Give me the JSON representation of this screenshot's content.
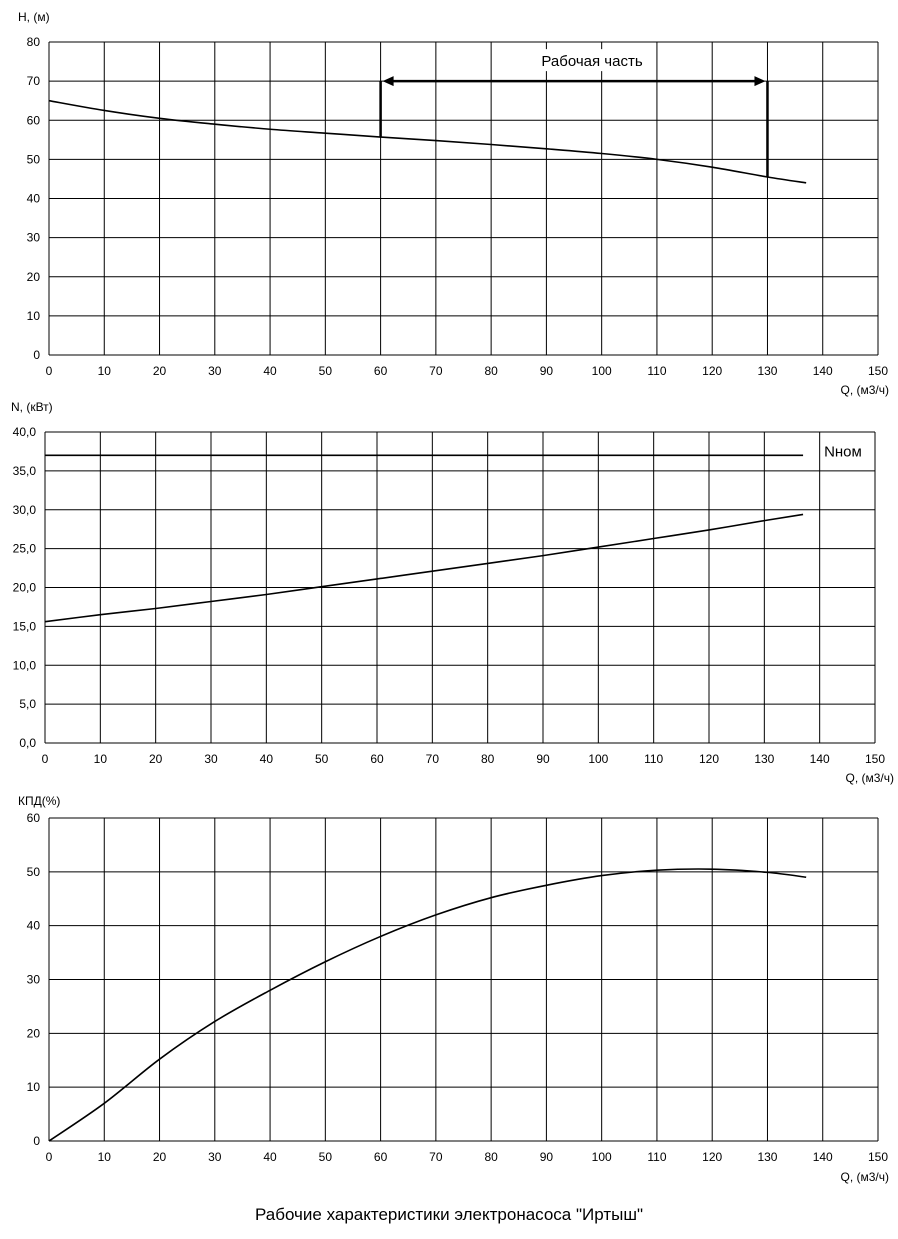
{
  "caption": "Рабочие характеристики электронасоса \"Иртыш\"",
  "chart_data": [
    {
      "type": "line",
      "ylabel": "H, (м)",
      "xlabel": "Q, (м3/ч)",
      "xlim": [
        0,
        150
      ],
      "ylim": [
        0,
        80
      ],
      "x_ticks": [
        "0",
        "10",
        "20",
        "30",
        "40",
        "50",
        "60",
        "70",
        "80",
        "90",
        "100",
        "110",
        "120",
        "130",
        "140",
        "150"
      ],
      "y_ticks": [
        "0",
        "10",
        "20",
        "30",
        "40",
        "50",
        "60",
        "70",
        "80"
      ],
      "grid": true,
      "series": [
        {
          "x": [
            0,
            10,
            20,
            30,
            40,
            50,
            60,
            70,
            80,
            90,
            100,
            110,
            120,
            130,
            137
          ],
          "y": [
            65,
            62.5,
            60.5,
            59,
            57.7,
            56.7,
            55.7,
            54.8,
            53.8,
            52.7,
            51.5,
            50,
            48,
            45.5,
            44
          ]
        }
      ],
      "annotation": {
        "text": "Рабочая часть",
        "x_start": 60,
        "x_end": 130,
        "y_level": 70
      }
    },
    {
      "type": "line",
      "ylabel": "N, (кВт)",
      "xlabel": "Q, (м3/ч)",
      "xlim": [
        0,
        150
      ],
      "ylim": [
        0,
        40
      ],
      "x_ticks": [
        "0",
        "10",
        "20",
        "30",
        "40",
        "50",
        "60",
        "70",
        "80",
        "90",
        "100",
        "110",
        "120",
        "130",
        "140",
        "150"
      ],
      "y_ticks": [
        "0,0",
        "5,0",
        "10,0",
        "15,0",
        "20,0",
        "25,0",
        "30,0",
        "35,0",
        "40,0"
      ],
      "grid": true,
      "series": [
        {
          "x": [
            0,
            10,
            20,
            30,
            40,
            50,
            60,
            70,
            80,
            90,
            100,
            110,
            120,
            130,
            137
          ],
          "y": [
            15.6,
            16.5,
            17.3,
            18.2,
            19.1,
            20.1,
            21.1,
            22.1,
            23.1,
            24.1,
            25.2,
            26.3,
            27.4,
            28.6,
            29.4
          ]
        },
        {
          "name": "Nном",
          "x": [
            0,
            137
          ],
          "y": [
            37,
            37
          ]
        }
      ]
    },
    {
      "type": "line",
      "ylabel": "КПД(%)",
      "xlabel": "Q, (м3/ч)",
      "xlim": [
        0,
        150
      ],
      "ylim": [
        0,
        60
      ],
      "x_ticks": [
        "0",
        "10",
        "20",
        "30",
        "40",
        "50",
        "60",
        "70",
        "80",
        "90",
        "100",
        "110",
        "120",
        "130",
        "140",
        "150"
      ],
      "y_ticks": [
        "0",
        "10",
        "20",
        "30",
        "40",
        "50",
        "60"
      ],
      "grid": true,
      "series": [
        {
          "x": [
            0,
            10,
            20,
            30,
            40,
            50,
            60,
            70,
            80,
            90,
            100,
            110,
            120,
            130,
            137
          ],
          "y": [
            0,
            7,
            15.2,
            22.2,
            28,
            33.3,
            38,
            42,
            45.2,
            47.5,
            49.3,
            50.3,
            50.5,
            49.9,
            49
          ]
        }
      ]
    }
  ]
}
